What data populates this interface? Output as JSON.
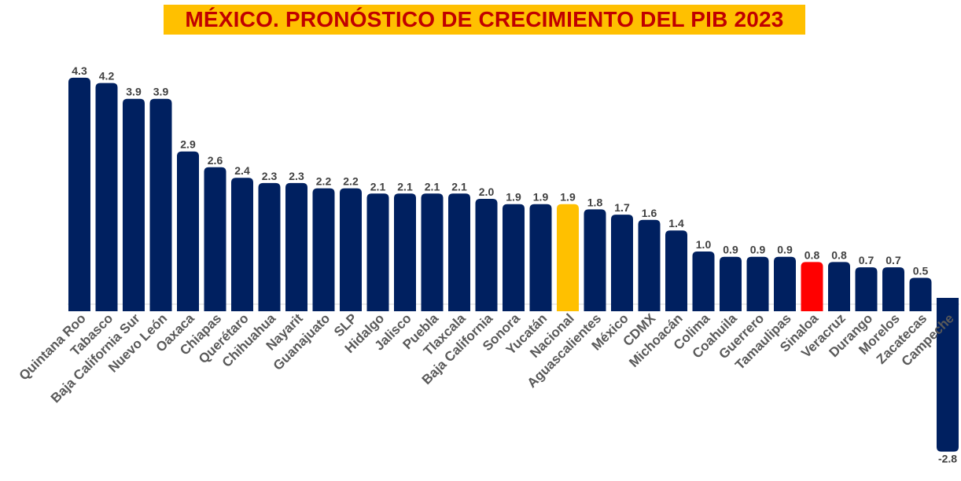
{
  "chart_data": {
    "type": "bar",
    "title": "MÉXICO. PRONÓSTICO DE CRECIMIENTO DEL PIB 2023",
    "xlabel": "",
    "ylabel": "",
    "ylim": [
      -2.8,
      4.3
    ],
    "categories": [
      "Quintana Roo",
      "Tabasco",
      "Baja California Sur",
      "Nuevo León",
      "Oaxaca",
      "Chiapas",
      "Querétaro",
      "Chihuahua",
      "Nayarit",
      "Guanajuato",
      "SLP",
      "Hidalgo",
      "Jalisco",
      "Puebla",
      "Tlaxcala",
      "Baja California",
      "Sonora",
      "Yucatán",
      "Nacional",
      "Aguascalientes",
      "México",
      "CDMX",
      "Michoacán",
      "Colima",
      "Coahuila",
      "Guerrero",
      "Tamaulipas",
      "Sinaloa",
      "Veracruz",
      "Durango",
      "Morelos",
      "Zacatecas",
      "Campeche"
    ],
    "values": [
      4.3,
      4.2,
      3.9,
      3.9,
      2.9,
      2.6,
      2.4,
      2.3,
      2.3,
      2.2,
      2.2,
      2.1,
      2.1,
      2.1,
      2.1,
      2.0,
      1.9,
      1.9,
      1.9,
      1.8,
      1.7,
      1.6,
      1.4,
      1.0,
      0.9,
      0.9,
      0.9,
      0.8,
      0.8,
      0.7,
      0.7,
      0.5,
      -2.8
    ],
    "value_labels": [
      "4.3",
      "4.2",
      "3.9",
      "3.9",
      "2.9",
      "2.6",
      "2.4",
      "2.3",
      "2.3",
      "2.2",
      "2.2",
      "2.1",
      "2.1",
      "2.1",
      "2.1",
      "2.0",
      "1.9",
      "1.9",
      "1.9",
      "1.8",
      "1.7",
      "1.6",
      "1.4",
      "1.0",
      "0.9",
      "0.9",
      "0.9",
      "0.8",
      "0.8",
      "0.7",
      "0.7",
      "0.5",
      "-2.8"
    ],
    "colors": {
      "default": "#002060",
      "Nacional": "#ffc000",
      "Sinaloa": "#ff0000",
      "title_bg": "#ffc000",
      "title_text": "#c00000"
    }
  }
}
